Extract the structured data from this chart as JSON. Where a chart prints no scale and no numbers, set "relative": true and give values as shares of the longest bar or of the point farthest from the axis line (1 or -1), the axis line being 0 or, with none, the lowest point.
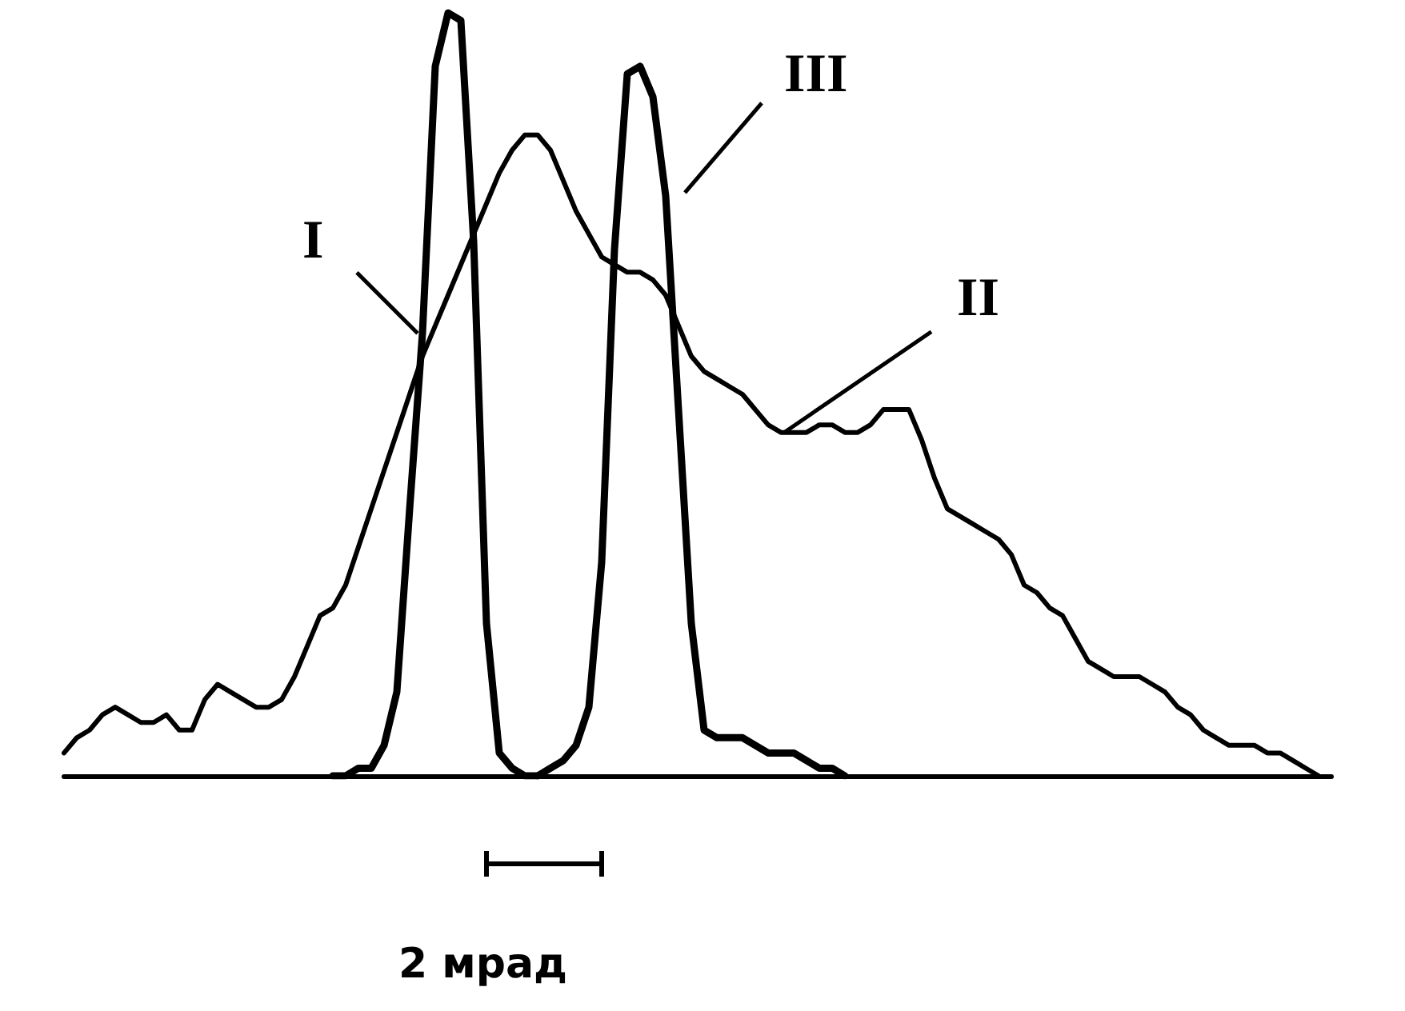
{
  "chart_data": {
    "type": "line",
    "relative": true,
    "legend": false,
    "grid": false,
    "marker": "none",
    "categories": [
      null,
      null,
      null,
      null,
      null,
      null,
      null,
      null,
      null,
      null,
      null,
      null,
      null,
      null,
      null,
      null,
      null,
      null,
      null,
      null,
      null,
      null,
      null,
      null,
      null,
      null,
      null,
      null,
      null,
      null,
      null,
      null,
      null,
      null,
      null,
      null,
      null,
      null,
      null,
      null,
      null,
      null,
      null,
      null,
      null,
      null,
      null,
      null,
      null,
      null,
      null,
      null,
      null,
      null,
      null,
      null,
      null,
      null,
      null,
      null,
      null,
      null,
      null,
      null,
      null,
      null,
      null,
      null,
      null,
      null,
      null,
      null,
      null,
      null,
      null,
      null,
      null,
      null,
      null,
      null,
      null,
      null,
      null,
      null,
      null,
      null,
      null,
      null,
      null,
      null,
      null,
      null,
      null,
      null,
      null,
      null,
      null,
      null,
      null,
      null
    ],
    "series": [
      {
        "name": "I",
        "color": "#000000",
        "values": [
          null,
          null,
          null,
          null,
          null,
          null,
          null,
          null,
          null,
          null,
          null,
          null,
          null,
          null,
          null,
          null,
          null,
          null,
          null,
          null,
          null,
          0.0,
          0.0,
          0.01,
          0.01,
          0.04,
          0.11,
          0.35,
          0.58,
          0.93,
          1.0,
          0.99,
          0.7,
          0.2,
          0.03,
          0.01,
          0.0,
          0.0,
          null,
          null,
          null,
          null,
          null,
          null,
          null,
          null,
          null,
          null,
          null,
          null,
          null,
          null,
          null,
          null,
          null,
          null,
          null,
          null,
          null,
          null,
          null,
          null,
          null,
          null,
          null,
          null,
          null,
          null,
          null,
          null,
          null,
          null,
          null,
          null,
          null,
          null,
          null,
          null,
          null,
          null,
          null,
          null,
          null,
          null,
          null,
          null,
          null,
          null,
          null,
          null,
          null,
          null,
          null,
          null,
          null,
          null,
          null,
          null,
          null,
          null
        ]
      },
      {
        "name": "II",
        "color": "#000000",
        "values": [
          0.03,
          0.05,
          0.06,
          0.08,
          0.09,
          0.08,
          0.07,
          0.07,
          0.08,
          0.06,
          0.06,
          0.1,
          0.12,
          0.11,
          0.1,
          0.09,
          0.09,
          0.1,
          0.13,
          0.17,
          0.21,
          0.22,
          0.25,
          0.3,
          0.35,
          0.4,
          0.45,
          0.5,
          0.55,
          0.59,
          0.63,
          0.67,
          0.71,
          0.75,
          0.79,
          0.82,
          0.84,
          0.84,
          0.82,
          0.78,
          0.74,
          0.71,
          0.68,
          0.67,
          0.66,
          0.66,
          0.65,
          0.63,
          0.59,
          0.55,
          0.53,
          0.52,
          0.51,
          0.5,
          0.48,
          0.46,
          0.45,
          0.45,
          0.45,
          0.46,
          0.46,
          0.45,
          0.45,
          0.46,
          0.48,
          0.48,
          0.48,
          0.44,
          0.39,
          0.35,
          0.34,
          0.33,
          0.32,
          0.31,
          0.29,
          0.25,
          0.24,
          0.22,
          0.21,
          0.18,
          0.15,
          0.14,
          0.13,
          0.13,
          0.13,
          0.12,
          0.11,
          0.09,
          0.08,
          0.06,
          0.05,
          0.04,
          0.04,
          0.04,
          0.03,
          0.03,
          0.02,
          0.01,
          0.0,
          null
        ]
      },
      {
        "name": "III",
        "color": "#000000",
        "values": [
          null,
          null,
          null,
          null,
          null,
          null,
          null,
          null,
          null,
          null,
          null,
          null,
          null,
          null,
          null,
          null,
          null,
          null,
          null,
          null,
          null,
          null,
          null,
          null,
          null,
          null,
          null,
          null,
          null,
          null,
          null,
          null,
          null,
          null,
          null,
          null,
          null,
          0.0,
          0.01,
          0.02,
          0.04,
          0.09,
          0.28,
          0.69,
          0.92,
          0.93,
          0.89,
          0.76,
          0.48,
          0.2,
          0.06,
          0.05,
          0.05,
          0.05,
          0.04,
          0.03,
          0.03,
          0.03,
          0.02,
          0.01,
          0.01,
          0.0,
          null,
          null,
          null,
          null,
          null,
          null,
          null,
          null,
          null,
          null,
          null,
          null,
          null,
          null,
          null,
          null,
          null,
          null,
          null,
          null,
          null,
          null,
          null,
          null,
          null,
          null,
          null,
          null,
          null,
          null,
          null,
          null,
          null,
          null,
          null,
          null,
          null,
          null
        ]
      }
    ],
    "annotations": [
      "2 мрад"
    ]
  }
}
